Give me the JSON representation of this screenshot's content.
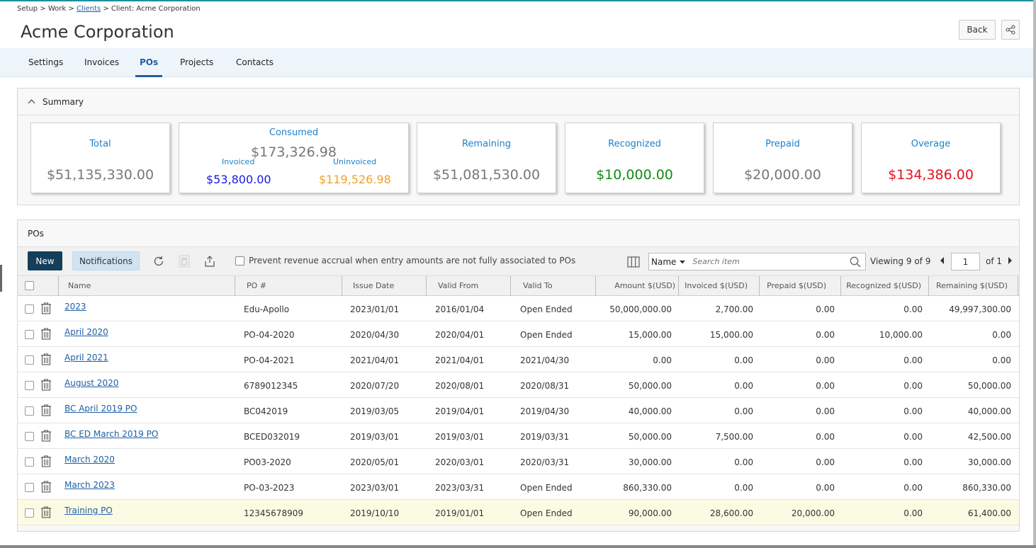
{
  "breadcrumb": {
    "setup": "Setup",
    "sep": ">",
    "work": "Work",
    "clients": "Clients",
    "client": "Client: Acme Corporation"
  },
  "page": {
    "title": "Acme Corporation",
    "back_label": "Back"
  },
  "tabs": [
    "Settings",
    "Invoices",
    "POs",
    "Projects",
    "Contacts"
  ],
  "summary": {
    "title": "Summary",
    "total": {
      "label": "Total",
      "value": "$51,135,330.00"
    },
    "consumed": {
      "label": "Consumed",
      "value": "$173,326.98",
      "invoiced_label": "Invoiced",
      "invoiced_value": "$53,800.00",
      "uninvoiced_label": "Uninvoiced",
      "uninvoiced_value": "$119,526.98"
    },
    "remaining": {
      "label": "Remaining",
      "value": "$51,081,530.00"
    },
    "recognized": {
      "label": "Recognized",
      "value": "$10,000.00"
    },
    "prepaid": {
      "label": "Prepaid",
      "value": "$20,000.00"
    },
    "overage": {
      "label": "Overage",
      "value": "$134,386.00"
    }
  },
  "colors": {
    "accent": "#1f5fa6",
    "label_blue": "#1d82c8",
    "recognized": "#138a13",
    "overage": "#e0141c",
    "invoiced": "#1a1adb",
    "uninvoiced": "#f0a030",
    "new_button": "#143f5a"
  },
  "pos": {
    "title": "POs",
    "new_label": "New",
    "notifications_label": "Notifications",
    "prevent_label": "Prevent revenue accrual when entry amounts are not fully associated to POs",
    "search_field": "Name",
    "search_placeholder": "Search item",
    "viewing_label": "Viewing",
    "viewing_count": "9 of 9",
    "page": "1",
    "of_label": "of 1"
  },
  "columns": [
    "Name",
    "PO #",
    "Issue Date",
    "Valid From",
    "Valid To",
    "Amount $(USD)",
    "Invoiced $(USD)",
    "Prepaid $(USD)",
    "Recognized $(USD)",
    "Remaining $(USD)"
  ],
  "rows": [
    {
      "name": "2023",
      "po": "Edu-Apollo",
      "issue": "2023/01/01",
      "from": "2016/01/04",
      "to": "Open Ended",
      "amount": "50,000,000.00",
      "invoiced": "2,700.00",
      "prepaid": "0.00",
      "recognized": "0.00",
      "remaining": "49,997,300.00"
    },
    {
      "name": "April 2020",
      "po": "PO-04-2020",
      "issue": "2020/04/30",
      "from": "2020/04/01",
      "to": "Open Ended",
      "amount": "15,000.00",
      "invoiced": "15,000.00",
      "prepaid": "0.00",
      "recognized": "10,000.00",
      "remaining": "0.00"
    },
    {
      "name": "April 2021",
      "po": "PO-04-2021",
      "issue": "2021/04/01",
      "from": "2021/04/01",
      "to": "2021/04/30",
      "amount": "0.00",
      "invoiced": "0.00",
      "prepaid": "0.00",
      "recognized": "0.00",
      "remaining": "0.00"
    },
    {
      "name": "August 2020",
      "po": "6789012345",
      "issue": "2020/07/20",
      "from": "2020/08/01",
      "to": "2020/08/31",
      "amount": "50,000.00",
      "invoiced": "0.00",
      "prepaid": "0.00",
      "recognized": "0.00",
      "remaining": "50,000.00"
    },
    {
      "name": "BC April 2019 PO",
      "po": "BC042019",
      "issue": "2019/03/05",
      "from": "2019/04/01",
      "to": "2019/04/30",
      "amount": "40,000.00",
      "invoiced": "0.00",
      "prepaid": "0.00",
      "recognized": "0.00",
      "remaining": "40,000.00"
    },
    {
      "name": "BC ED March 2019 PO",
      "po": "BCED032019",
      "issue": "2019/03/01",
      "from": "2019/03/01",
      "to": "2019/03/31",
      "amount": "50,000.00",
      "invoiced": "7,500.00",
      "prepaid": "0.00",
      "recognized": "0.00",
      "remaining": "42,500.00"
    },
    {
      "name": "March 2020",
      "po": "PO03-2020",
      "issue": "2020/05/01",
      "from": "2020/03/01",
      "to": "2020/03/31",
      "amount": "30,000.00",
      "invoiced": "0.00",
      "prepaid": "0.00",
      "recognized": "0.00",
      "remaining": "30,000.00"
    },
    {
      "name": "March 2023",
      "po": "PO-03-2023",
      "issue": "2023/03/01",
      "from": "2023/03/31",
      "to": "Open Ended",
      "amount": "860,330.00",
      "invoiced": "0.00",
      "prepaid": "0.00",
      "recognized": "0.00",
      "remaining": "860,330.00"
    },
    {
      "name": "Training PO",
      "po": "12345678909",
      "issue": "2019/10/10",
      "from": "2019/01/01",
      "to": "Open Ended",
      "amount": "90,000.00",
      "invoiced": "28,600.00",
      "prepaid": "20,000.00",
      "recognized": "0.00",
      "remaining": "61,400.00",
      "highlighted": true
    }
  ]
}
